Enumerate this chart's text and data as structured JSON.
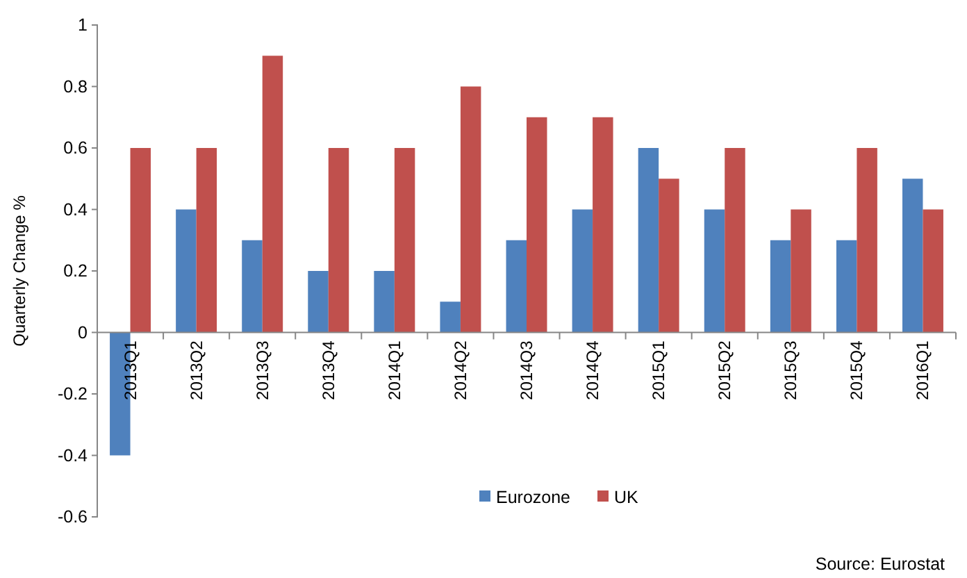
{
  "chart_data": {
    "type": "bar",
    "ylabel": "Quarterly Change %",
    "categories": [
      "2013Q1",
      "2013Q2",
      "2013Q3",
      "2013Q4",
      "2014Q1",
      "2014Q2",
      "2014Q3",
      "2014Q4",
      "2015Q1",
      "2015Q2",
      "2015Q3",
      "2015Q4",
      "2016Q1"
    ],
    "series": [
      {
        "name": "Eurozone",
        "color": "#4f81bd",
        "values": [
          -0.4,
          0.4,
          0.3,
          0.2,
          0.2,
          0.1,
          0.3,
          0.4,
          0.6,
          0.4,
          0.3,
          0.3,
          0.5
        ]
      },
      {
        "name": "UK",
        "color": "#c0504d",
        "values": [
          0.6,
          0.6,
          0.9,
          0.6,
          0.6,
          0.8,
          0.7,
          0.7,
          0.5,
          0.6,
          0.4,
          0.6,
          0.4
        ]
      }
    ],
    "ylim": [
      -0.6,
      1
    ],
    "yticks": [
      -0.6,
      -0.4,
      -0.2,
      0,
      0.2,
      0.4,
      0.6,
      0.8,
      1
    ],
    "legend": "bottom",
    "grid": false,
    "annotations": [
      "Source: Eurostat"
    ]
  }
}
